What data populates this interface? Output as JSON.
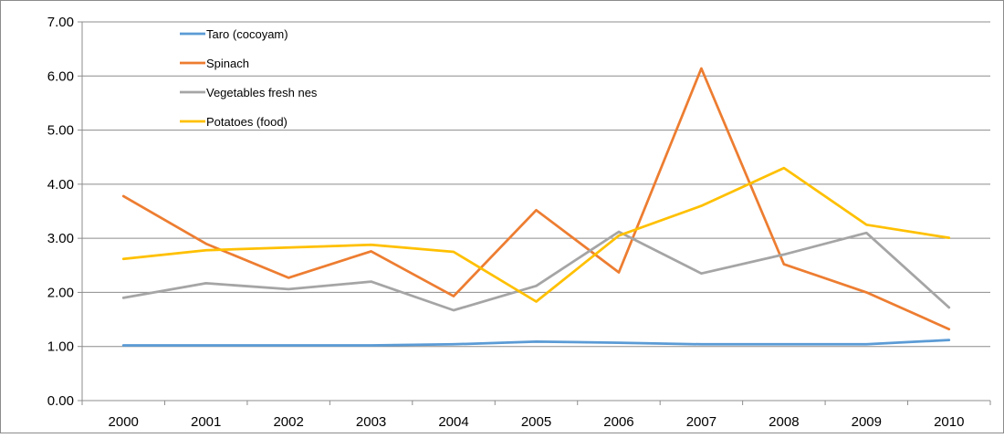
{
  "chart_data": {
    "type": "line",
    "title": "",
    "xlabel": "",
    "ylabel": "",
    "categories": [
      "2000",
      "2001",
      "2002",
      "2003",
      "2004",
      "2005",
      "2006",
      "2007",
      "2008",
      "2009",
      "2010"
    ],
    "y_ticks": [
      "0.00",
      "1.00",
      "2.00",
      "3.00",
      "4.00",
      "5.00",
      "6.00",
      "7.00"
    ],
    "ylim": [
      0,
      7
    ],
    "grid": true,
    "legend_position": "top-left",
    "series": [
      {
        "name": "Taro (cocoyam)",
        "color": "#5B9BD5",
        "values": [
          1.02,
          1.02,
          1.02,
          1.02,
          1.04,
          1.09,
          1.07,
          1.04,
          1.04,
          1.04,
          1.12
        ]
      },
      {
        "name": "Spinach",
        "color": "#ED7D31",
        "values": [
          3.78,
          2.9,
          2.27,
          2.76,
          1.93,
          3.52,
          2.37,
          6.14,
          2.52,
          2.0,
          1.32
        ]
      },
      {
        "name": "Vegetables fresh nes",
        "color": "#A5A5A5",
        "values": [
          1.9,
          2.17,
          2.06,
          2.2,
          1.67,
          2.12,
          3.12,
          2.35,
          2.7,
          3.1,
          1.72
        ]
      },
      {
        "name": "Potatoes (food)",
        "color": "#FFC000",
        "values": [
          2.62,
          2.78,
          2.83,
          2.88,
          2.75,
          1.83,
          3.05,
          3.6,
          4.3,
          3.25,
          3.01
        ]
      }
    ]
  }
}
